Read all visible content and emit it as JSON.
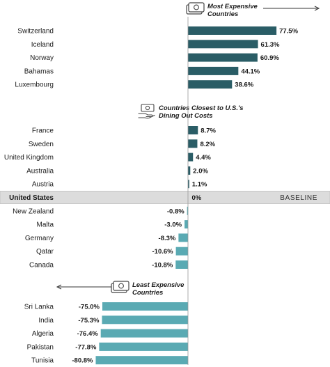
{
  "chart_data": {
    "type": "bar",
    "orientation": "horizontal",
    "unit": "%",
    "xlim": [
      -100,
      100
    ],
    "colors": {
      "dark": "#2a5d66",
      "light": "#5aaab3",
      "baseline_band": "#dcdcdc"
    },
    "sections": [
      {
        "key": "most",
        "title_lines": [
          "Most Expensive",
          "Countries"
        ],
        "icon": "money-bill-icon",
        "arrow": "right",
        "color": "#2a5d66",
        "categories": [
          "Switzerland",
          "Iceland",
          "Norway",
          "Bahamas",
          "Luxembourg"
        ],
        "values": [
          77.5,
          61.3,
          60.9,
          44.1,
          38.6
        ],
        "labels": [
          "77.5%",
          "61.3%",
          "60.9%",
          "44.1%",
          "38.6%"
        ]
      },
      {
        "key": "closest",
        "title_lines": [
          "Countries Closest to U.S.'s",
          "Dining Out Costs"
        ],
        "icon": "money-hand-icon",
        "arrow": "none",
        "color": "#2a5d66",
        "categories": [
          "France",
          "Sweden",
          "United Kingdom",
          "Australia",
          "Austria",
          "United States",
          "New Zealand",
          "Malta",
          "Germany",
          "Qatar",
          "Canada"
        ],
        "values": [
          8.7,
          8.2,
          4.4,
          2.0,
          1.1,
          0,
          -0.8,
          -3.0,
          -8.3,
          -10.6,
          -10.8
        ],
        "labels": [
          "8.7%",
          "8.2%",
          "4.4%",
          "2.0%",
          "1.1%",
          "0%",
          "-0.8%",
          "-3.0%",
          "-8.3%",
          "-10.6%",
          "-10.8%"
        ],
        "baseline_index": 5,
        "baseline_label": "BASELINE"
      },
      {
        "key": "least",
        "title_lines": [
          "Least Expensive",
          "Countries"
        ],
        "icon": "money-bill-icon",
        "arrow": "left",
        "color": "#5aaab3",
        "categories": [
          "Sri Lanka",
          "India",
          "Algeria",
          "Pakistan",
          "Tunisia"
        ],
        "values": [
          -75.0,
          -75.3,
          -76.4,
          -77.8,
          -80.8
        ],
        "labels": [
          "-75.0%",
          "-75.3%",
          "-76.4%",
          "-77.8%",
          "-80.8%"
        ]
      }
    ]
  }
}
